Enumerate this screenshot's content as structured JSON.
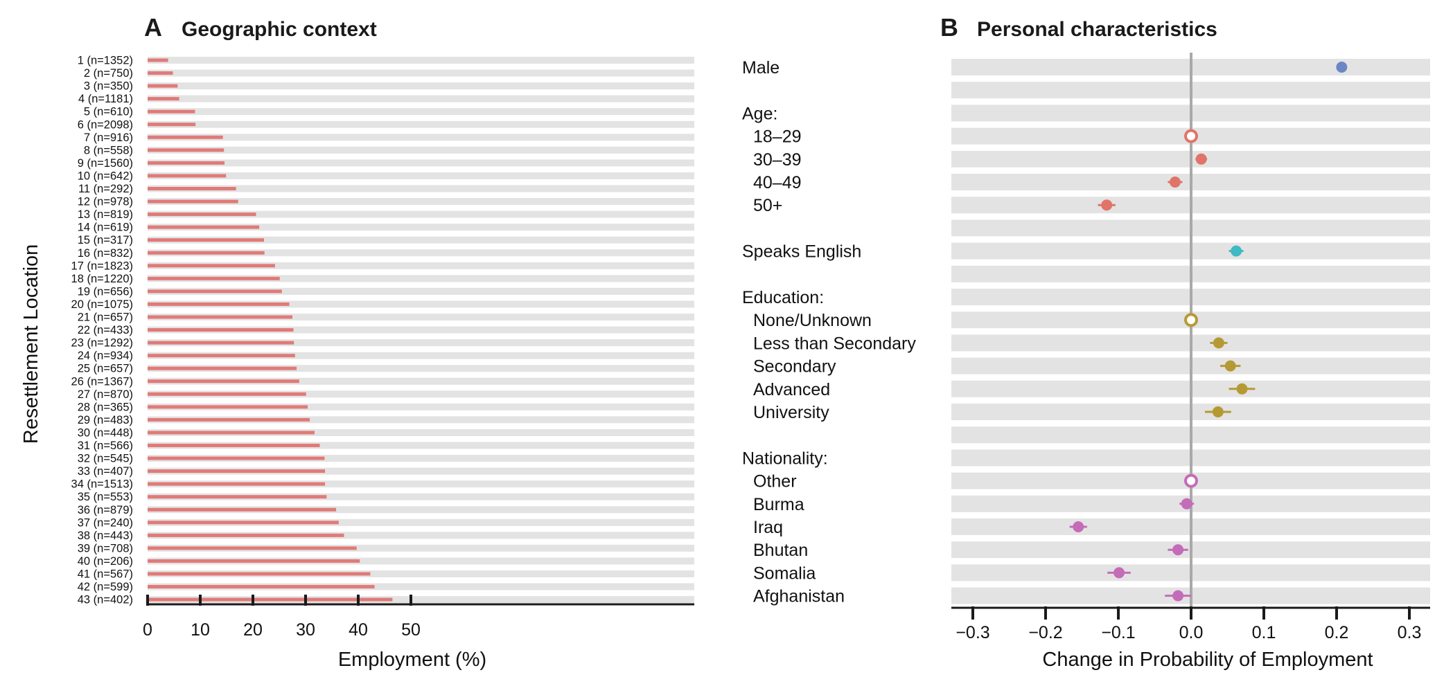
{
  "panel_a": {
    "letter": "A",
    "title": "Geographic context"
  },
  "panel_b": {
    "letter": "B",
    "title": "Personal characteristics"
  },
  "chart_data": [
    {
      "type": "bar",
      "orientation": "horizontal",
      "title": "Geographic context",
      "xlabel": "Employment (%)",
      "ylabel": "Resettlement Location",
      "xlim": [
        0,
        52
      ],
      "xticks": [
        0,
        10,
        20,
        30,
        40,
        50
      ],
      "xtick_labels": [
        "0",
        "10",
        "20",
        "30",
        "40",
        "50"
      ],
      "grid": "alternating light gray row bands",
      "bar_color": "#e07b78",
      "categories": [
        "1 (n=1352)",
        "2 (n=750)",
        "3 (n=350)",
        "4 (n=1181)",
        "5 (n=610)",
        "6 (n=2098)",
        "7 (n=916)",
        "8 (n=558)",
        "9 (n=1560)",
        "10 (n=642)",
        "11 (n=292)",
        "12 (n=978)",
        "13 (n=819)",
        "14 (n=619)",
        "15 (n=317)",
        "16 (n=832)",
        "17 (n=1823)",
        "18 (n=1220)",
        "19 (n=656)",
        "20 (n=1075)",
        "21 (n=657)",
        "22 (n=433)",
        "23 (n=1292)",
        "24 (n=934)",
        "25 (n=657)",
        "26 (n=1367)",
        "27 (n=870)",
        "28 (n=365)",
        "29 (n=483)",
        "30 (n=448)",
        "31 (n=566)",
        "32 (n=545)",
        "33 (n=407)",
        "34 (n=1513)",
        "35 (n=553)",
        "36 (n=879)",
        "37 (n=240)",
        "38 (n=443)",
        "39 (n=708)",
        "40 (n=206)",
        "41 (n=567)",
        "42 (n=599)",
        "43 (n=402)"
      ],
      "values": [
        3.9,
        4.8,
        5.7,
        6.0,
        9.0,
        9.1,
        14.3,
        14.5,
        14.6,
        14.9,
        16.8,
        17.2,
        20.6,
        21.2,
        22.1,
        22.2,
        24.2,
        25.1,
        25.5,
        26.9,
        27.5,
        27.7,
        27.8,
        28.0,
        28.3,
        28.8,
        30.1,
        30.4,
        30.8,
        31.7,
        32.7,
        33.6,
        33.7,
        33.7,
        34.0,
        35.8,
        36.3,
        37.3,
        39.7,
        40.3,
        42.3,
        43.1,
        46.5
      ]
    },
    {
      "type": "scatter",
      "subtype": "dot plot with confidence intervals",
      "title": "Personal characteristics",
      "xlabel": "Change in Probability of Employment",
      "xlim": [
        -0.33,
        0.33
      ],
      "xticks": [
        -0.3,
        -0.2,
        -0.1,
        0.0,
        0.1,
        0.2,
        0.3
      ],
      "xtick_labels": [
        "−0.3",
        "−0.2",
        "−0.1",
        "0.0",
        "0.1",
        "0.2",
        "0.3"
      ],
      "reference_line": 0.0,
      "grid": "alternating light gray row bands",
      "colors": {
        "male": "#6b86c6",
        "age": "#e07468",
        "english": "#3fb9c2",
        "education": "#b59a34",
        "nationality": "#c46cb8",
        "reference_line": "#a9a9a9"
      },
      "rows": [
        {
          "label": "Male",
          "indent": false,
          "value": 0.207,
          "ci": [
            0.2,
            0.214
          ],
          "group": "male",
          "reference": false
        },
        {
          "label": "",
          "spacer": true
        },
        {
          "label": "Age:",
          "indent": false,
          "header": true
        },
        {
          "label": "18–29",
          "indent": true,
          "value": 0.0,
          "group": "age",
          "reference": true
        },
        {
          "label": "30–39",
          "indent": true,
          "value": 0.014,
          "ci": [
            0.006,
            0.022
          ],
          "group": "age",
          "reference": false
        },
        {
          "label": "40–49",
          "indent": true,
          "value": -0.022,
          "ci": [
            -0.032,
            -0.012
          ],
          "group": "age",
          "reference": false
        },
        {
          "label": "50+",
          "indent": true,
          "value": -0.116,
          "ci": [
            -0.128,
            -0.104
          ],
          "group": "age",
          "reference": false
        },
        {
          "label": "",
          "spacer": true
        },
        {
          "label": "Speaks English",
          "indent": false,
          "value": 0.062,
          "ci": [
            0.052,
            0.072
          ],
          "group": "english",
          "reference": false
        },
        {
          "label": "",
          "spacer": true
        },
        {
          "label": "Education:",
          "indent": false,
          "header": true
        },
        {
          "label": "None/Unknown",
          "indent": true,
          "value": 0.0,
          "group": "education",
          "reference": true
        },
        {
          "label": "Less than Secondary",
          "indent": true,
          "value": 0.038,
          "ci": [
            0.026,
            0.05
          ],
          "group": "education",
          "reference": false
        },
        {
          "label": "Secondary",
          "indent": true,
          "value": 0.054,
          "ci": [
            0.04,
            0.068
          ],
          "group": "education",
          "reference": false
        },
        {
          "label": "Advanced",
          "indent": true,
          "value": 0.07,
          "ci": [
            0.052,
            0.088
          ],
          "group": "education",
          "reference": false
        },
        {
          "label": "University",
          "indent": true,
          "value": 0.037,
          "ci": [
            0.019,
            0.055
          ],
          "group": "education",
          "reference": false
        },
        {
          "label": "",
          "spacer": true
        },
        {
          "label": "Nationality:",
          "indent": false,
          "header": true
        },
        {
          "label": "Other",
          "indent": true,
          "value": 0.0,
          "group": "nationality",
          "reference": true
        },
        {
          "label": "Burma",
          "indent": true,
          "value": -0.006,
          "ci": [
            -0.016,
            0.004
          ],
          "group": "nationality",
          "reference": false
        },
        {
          "label": "Iraq",
          "indent": true,
          "value": -0.155,
          "ci": [
            -0.167,
            -0.143
          ],
          "group": "nationality",
          "reference": false
        },
        {
          "label": "Bhutan",
          "indent": true,
          "value": -0.018,
          "ci": [
            -0.032,
            -0.004
          ],
          "group": "nationality",
          "reference": false
        },
        {
          "label": "Somalia",
          "indent": true,
          "value": -0.099,
          "ci": [
            -0.115,
            -0.083
          ],
          "group": "nationality",
          "reference": false
        },
        {
          "label": "Afghanistan",
          "indent": true,
          "value": -0.018,
          "ci": [
            -0.036,
            0.0
          ],
          "group": "nationality",
          "reference": false
        }
      ]
    }
  ]
}
